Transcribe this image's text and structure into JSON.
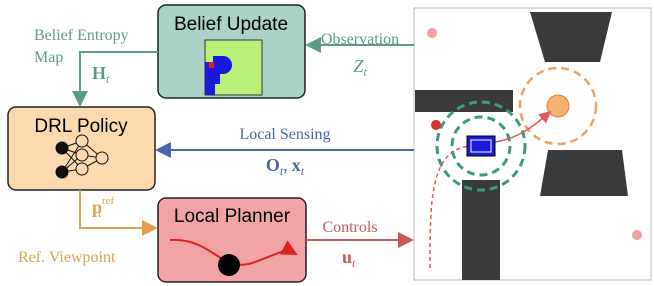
{
  "belief_update": {
    "title": "Belief Update"
  },
  "observation": {
    "label": "Observation",
    "symbol": {
      "base": "Z",
      "sub": "t"
    }
  },
  "belief_entropy": {
    "lines": [
      "Belief Entropy",
      "Map"
    ],
    "symbol": {
      "base": "H",
      "sub": "t"
    }
  },
  "drl_policy": {
    "title": "DRL Policy"
  },
  "local_sensing": {
    "label": "Local Sensing",
    "symbols": [
      {
        "base": "O",
        "sub": "t"
      },
      {
        "base": "x",
        "sub": "t"
      }
    ],
    "separator": ","
  },
  "ref_viewpoint": {
    "label": "Ref. Viewpoint",
    "symbol": {
      "base": "p",
      "sub": "t",
      "sup": "ref"
    }
  },
  "local_planner": {
    "title": "Local Planner"
  },
  "controls": {
    "label": "Controls",
    "symbol": {
      "base": "u",
      "sub": "t"
    }
  }
}
